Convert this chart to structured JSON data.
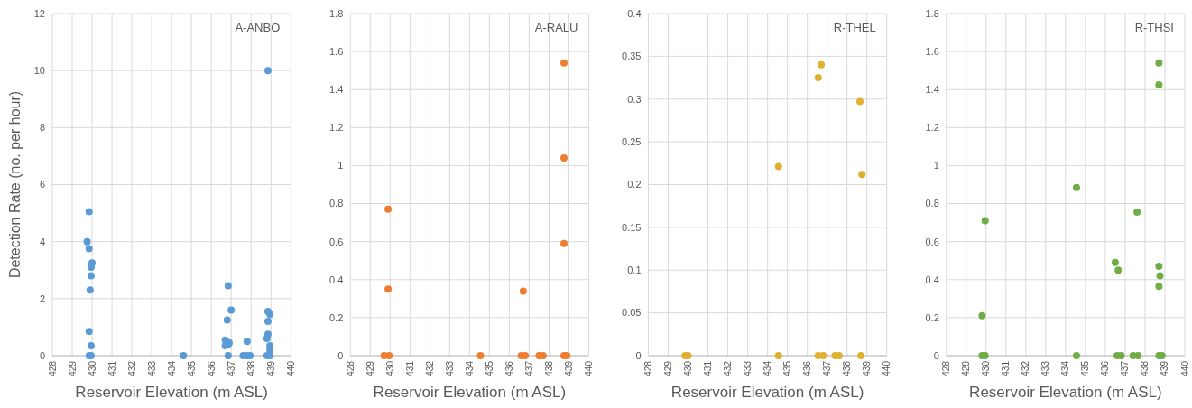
{
  "chart_data": [
    {
      "type": "scatter",
      "title": "A-ANBO",
      "xlabel": "Reservoir Elevation (m ASL)",
      "ylabel": "Detection Rate (no. per hour)",
      "marker": "circle",
      "grid": true,
      "color": "#5b9bd5",
      "x": [
        429.85,
        429.75,
        429.85,
        430.0,
        429.95,
        429.95,
        429.9,
        429.85,
        429.95,
        429.85,
        429.95,
        434.6,
        436.7,
        436.7,
        436.9,
        436.85,
        436.85,
        436.8,
        437.0,
        436.85,
        437.6,
        437.8,
        437.95,
        437.8,
        438.85,
        438.85,
        438.95,
        438.85,
        438.85,
        438.8,
        438.95,
        438.95,
        438.8,
        438.95
      ],
      "values": [
        5.05,
        4.0,
        3.75,
        3.25,
        3.1,
        2.8,
        2.3,
        0.85,
        0.35,
        0,
        0,
        0,
        0.55,
        0.35,
        0.45,
        0.4,
        2.45,
        1.25,
        1.6,
        0,
        0,
        0.5,
        0,
        0,
        10.0,
        1.55,
        1.45,
        1.2,
        0.75,
        0.6,
        0.35,
        0.2,
        0,
        0
      ],
      "xlim": [
        428,
        440
      ],
      "xticks": [
        428,
        429,
        430,
        431,
        432,
        433,
        434,
        435,
        436,
        437,
        438,
        439,
        440
      ],
      "ylim": [
        0,
        12
      ],
      "yticks": [
        0,
        2,
        4,
        6,
        8,
        10,
        12
      ]
    },
    {
      "type": "scatter",
      "title": "A-RALU",
      "xlabel": "Reservoir Elevation (m ASL)",
      "marker": "circle",
      "grid": true,
      "color": "#ed7d31",
      "x": [
        429.9,
        429.9,
        429.7,
        429.95,
        434.55,
        436.7,
        436.6,
        436.8,
        437.5,
        437.7,
        438.75,
        438.75,
        438.75,
        438.75,
        438.9
      ],
      "values": [
        0.77,
        0.35,
        0,
        0,
        0,
        0.34,
        0,
        0,
        0,
        0,
        1.54,
        1.04,
        0.59,
        0,
        0
      ],
      "xlim": [
        428,
        440
      ],
      "xticks": [
        428,
        429,
        430,
        431,
        432,
        433,
        434,
        435,
        436,
        437,
        438,
        439,
        440
      ],
      "ylim": [
        0,
        1.8
      ],
      "yticks": [
        0,
        0.2,
        0.4,
        0.6,
        0.8,
        1,
        1.2,
        1.4,
        1.6,
        1.8
      ]
    },
    {
      "type": "scatter",
      "title": "R-THEL",
      "xlabel": "Reservoir Elevation (m ASL)",
      "marker": "circle",
      "grid": true,
      "color": "#e0b030",
      "x": [
        429.85,
        430.0,
        434.55,
        434.55,
        436.55,
        436.7,
        436.55,
        436.8,
        437.4,
        437.6,
        438.65,
        438.75,
        438.7
      ],
      "values": [
        0,
        0,
        0.221,
        0,
        0.325,
        0.34,
        0,
        0,
        0,
        0,
        0.297,
        0.212,
        0
      ],
      "xlim": [
        428,
        440
      ],
      "xticks": [
        428,
        429,
        430,
        431,
        432,
        433,
        434,
        435,
        436,
        437,
        438,
        439,
        440
      ],
      "ylim": [
        0,
        0.4
      ],
      "yticks": [
        0,
        0.05,
        0.1,
        0.15,
        0.2,
        0.25,
        0.3,
        0.35,
        0.4
      ]
    },
    {
      "type": "scatter",
      "title": "R-THSI",
      "xlabel": "Reservoir Elevation (m ASL)",
      "marker": "circle",
      "grid": true,
      "color": "#70ad47",
      "x": [
        429.95,
        429.8,
        429.8,
        429.95,
        434.55,
        434.55,
        436.5,
        436.65,
        436.6,
        436.8,
        437.6,
        437.4,
        437.65,
        438.7,
        438.7,
        438.7,
        438.75,
        438.7,
        438.7,
        438.85
      ],
      "values": [
        0.71,
        0.21,
        0,
        0,
        0.885,
        0,
        0.49,
        0.45,
        0,
        0,
        0.755,
        0,
        0,
        1.54,
        1.425,
        0.47,
        0.42,
        0.365,
        0,
        0
      ],
      "xlim": [
        428,
        440
      ],
      "xticks": [
        428,
        429,
        430,
        431,
        432,
        433,
        434,
        435,
        436,
        437,
        438,
        439,
        440
      ],
      "ylim": [
        0,
        1.8
      ],
      "yticks": [
        0,
        0.2,
        0.4,
        0.6,
        0.8,
        1,
        1.2,
        1.4,
        1.6,
        1.8
      ]
    }
  ]
}
